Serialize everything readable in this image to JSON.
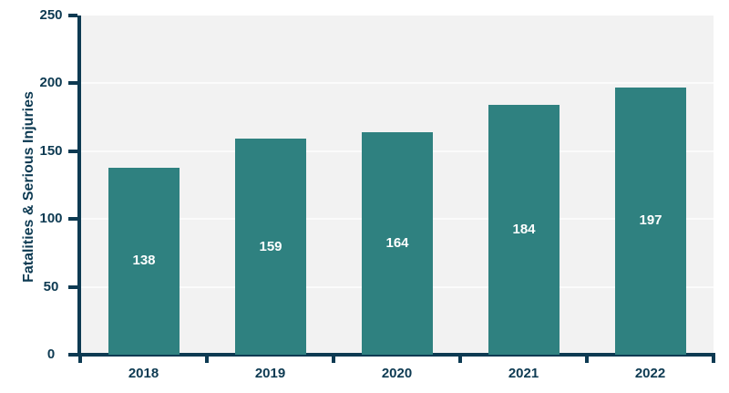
{
  "chart_data": {
    "type": "bar",
    "title": "",
    "xlabel": "",
    "ylabel": "Fatalities & Serious Injuries",
    "categories": [
      "2018",
      "2019",
      "2020",
      "2021",
      "2022"
    ],
    "values": [
      138,
      159,
      164,
      184,
      197
    ],
    "bar_labels": [
      "138",
      "159",
      "164",
      "184",
      "197"
    ],
    "ylim": [
      0,
      250
    ],
    "yticks": [
      0,
      50,
      100,
      150,
      200,
      250
    ],
    "grid": "horizontal",
    "legend": "none"
  },
  "colors": {
    "bar": "#2f8180",
    "axis": "#0d3a52",
    "plot_background": "#f2f2f2",
    "gridline": "#fbfbfb",
    "bar_label": "#ffffff",
    "page_background": "#ffffff"
  }
}
